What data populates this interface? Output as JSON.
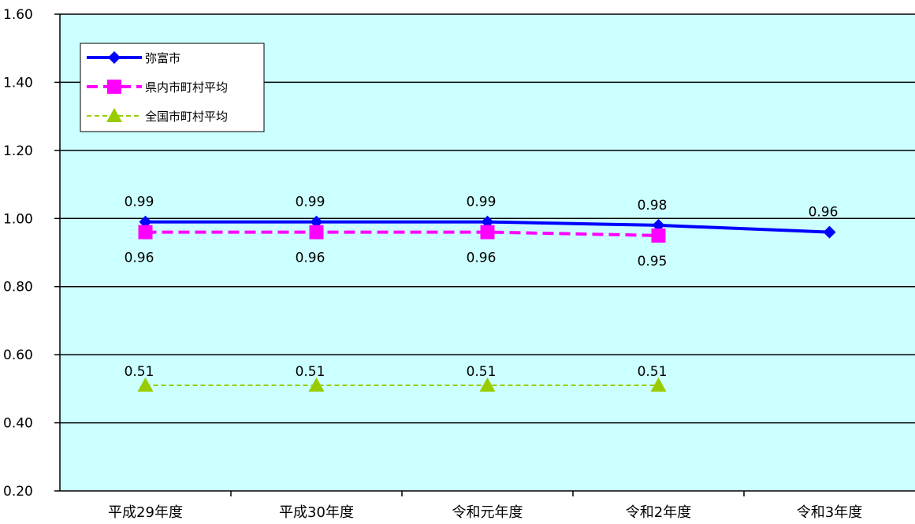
{
  "chart_data": {
    "type": "line",
    "categories": [
      "平成29年度",
      "平成30年度",
      "令和元年度",
      "令和2年度",
      "令和3年度"
    ],
    "ylim": [
      0.2,
      1.6
    ],
    "yticks": [
      "1.60",
      "1.40",
      "1.20",
      "1.00",
      "0.80",
      "0.60",
      "0.40",
      "0.20"
    ],
    "grid": true,
    "legend_position": "top-left",
    "plot_background": "#ccffff",
    "series": [
      {
        "name": "弥富市",
        "values": [
          0.99,
          0.99,
          0.99,
          0.98,
          0.96
        ],
        "labels": [
          "0.99",
          "0.99",
          "0.99",
          "0.98",
          "0.96"
        ],
        "color": "#0000ff",
        "line_style": "solid",
        "marker": "diamond"
      },
      {
        "name": "県内市町村平均",
        "values": [
          0.96,
          0.96,
          0.96,
          0.95,
          null
        ],
        "labels": [
          "0.96",
          "0.96",
          "0.96",
          "0.95",
          null
        ],
        "color": "#ff00ff",
        "line_style": "dashed",
        "marker": "square"
      },
      {
        "name": "全国市町村平均",
        "values": [
          0.51,
          0.51,
          0.51,
          0.51,
          null
        ],
        "labels": [
          "0.51",
          "0.51",
          "0.51",
          "0.51",
          null
        ],
        "color": "#99cc00",
        "line_style": "dotted",
        "marker": "triangle"
      }
    ]
  }
}
